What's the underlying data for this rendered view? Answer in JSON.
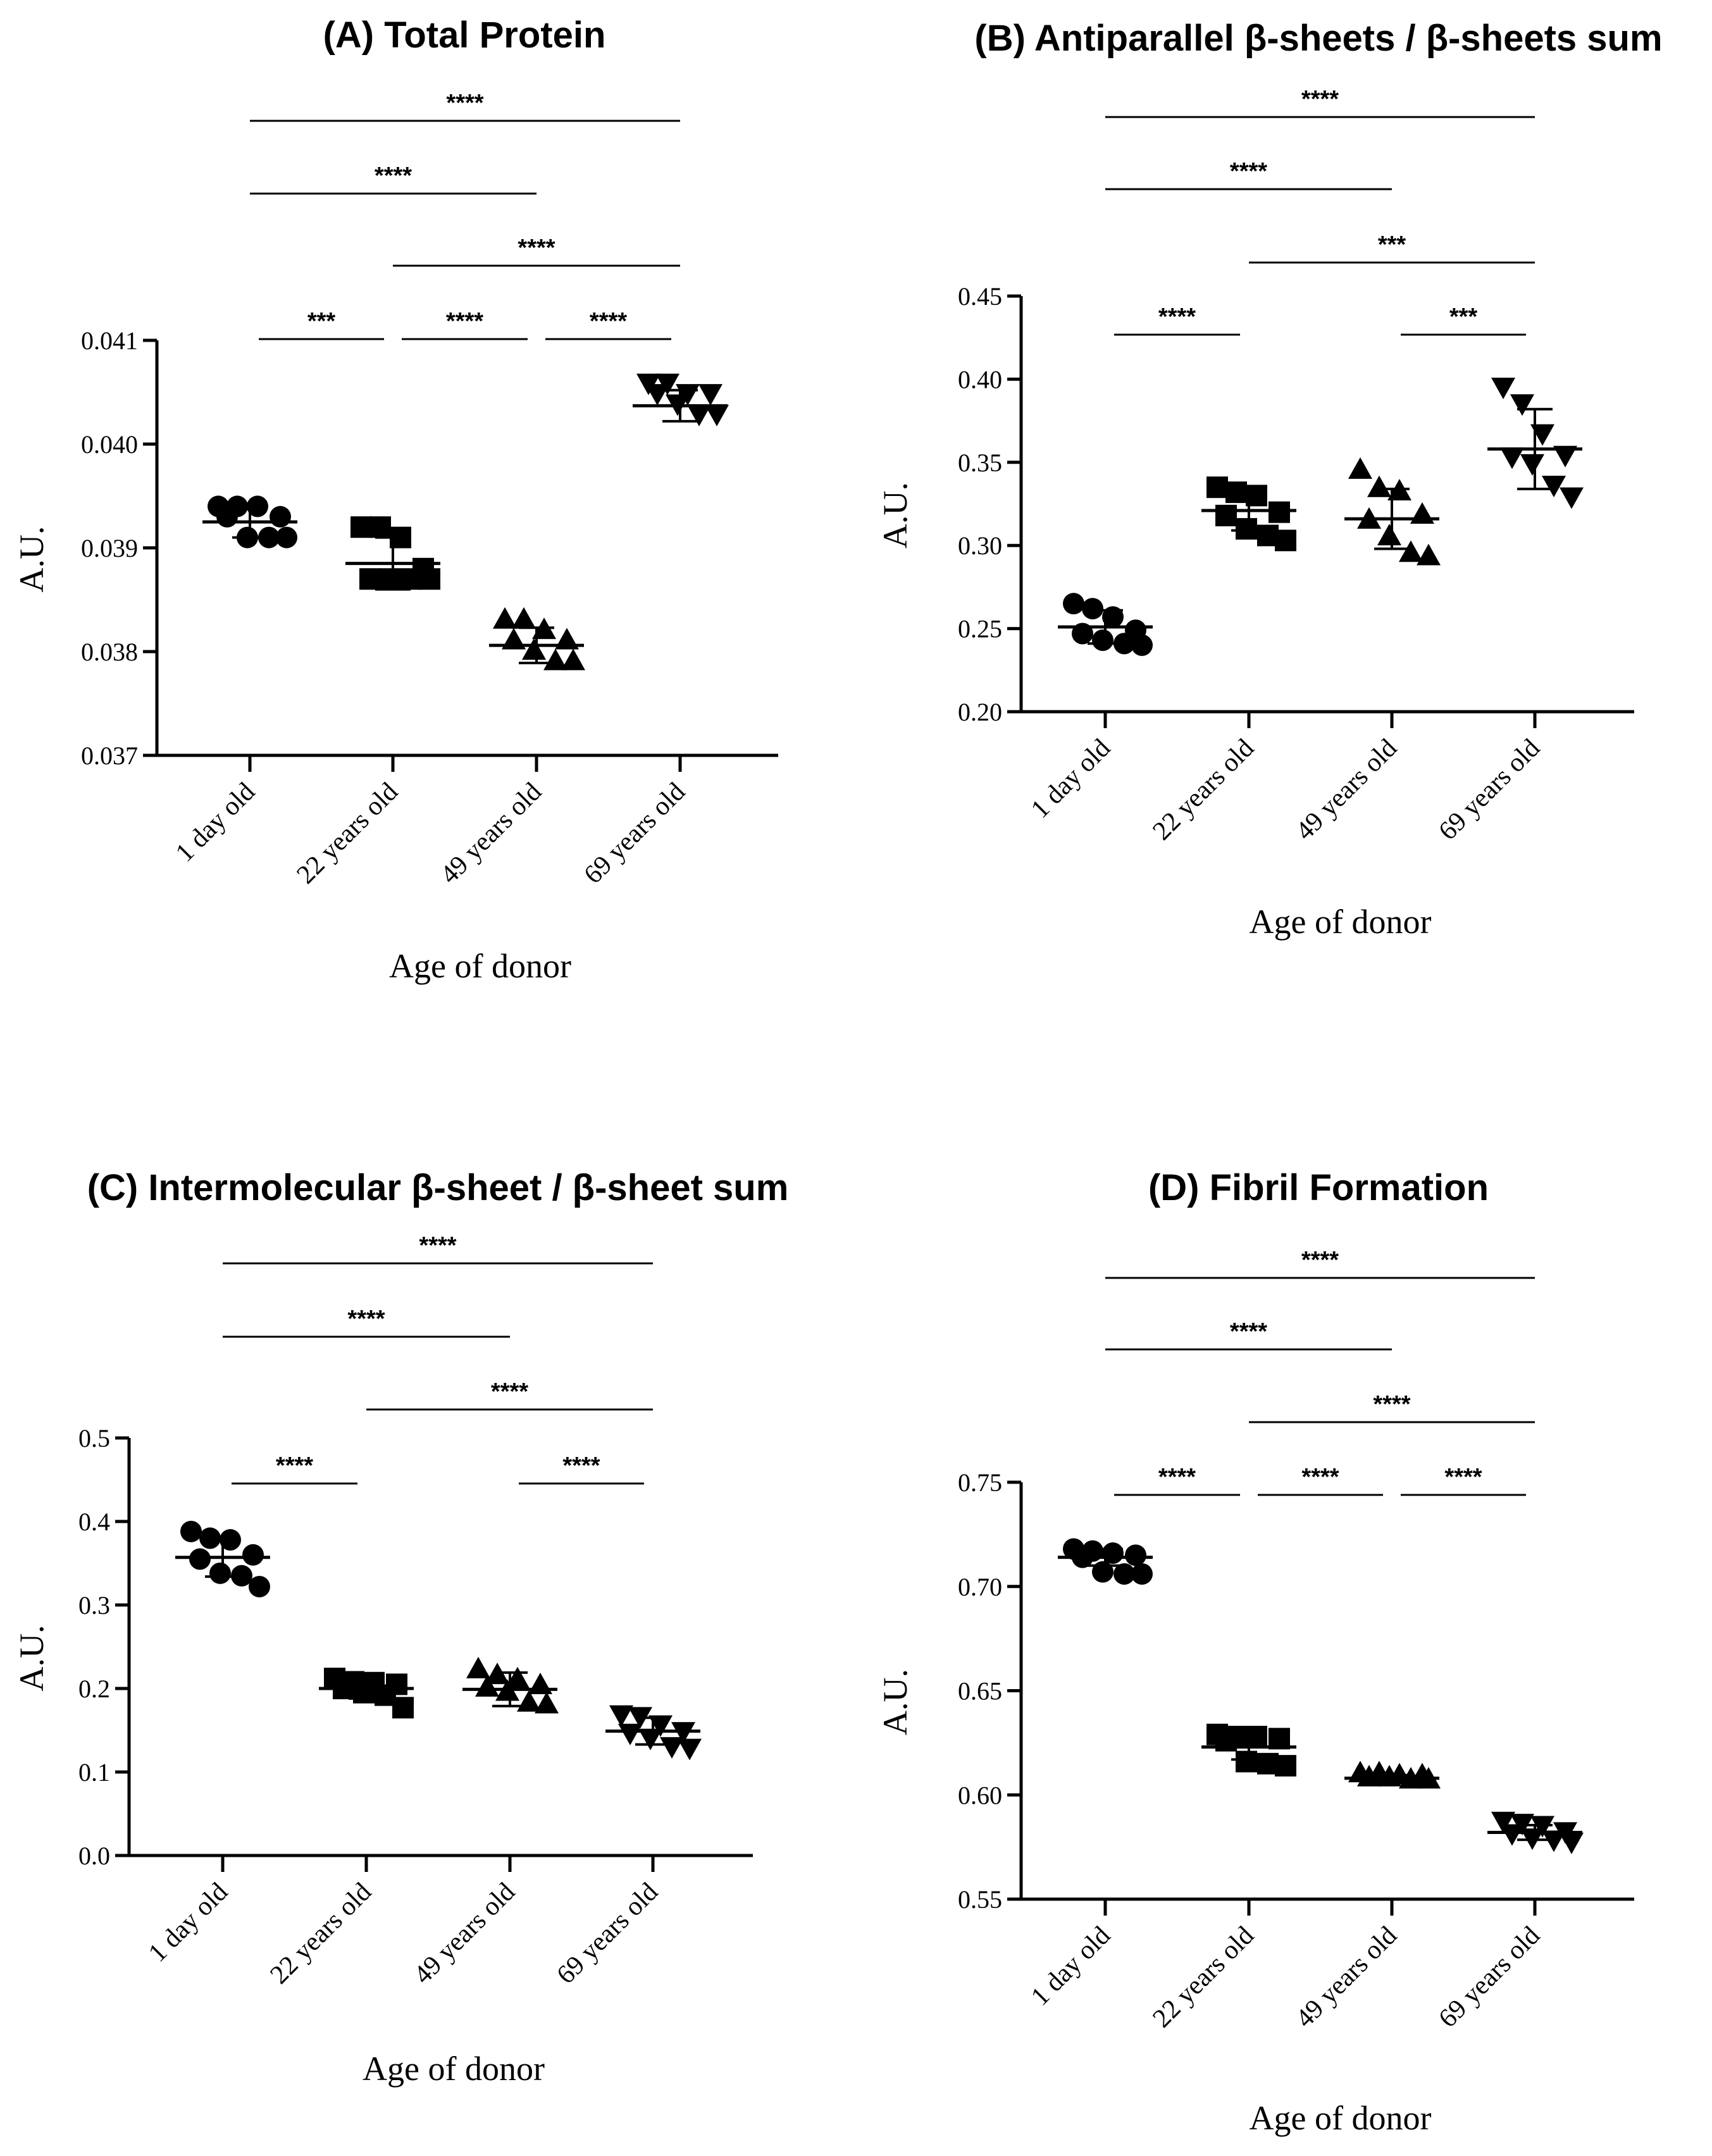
{
  "chart_data": [
    {
      "id": "A",
      "type": "scatter",
      "title": "(A) Total Protein",
      "xlabel": "Age of donor",
      "ylabel": "A.U.",
      "categories": [
        "1 day old",
        "22 years old",
        "49 years old",
        "69 years old"
      ],
      "markers": [
        "circle",
        "square",
        "triangle-up",
        "triangle-down"
      ],
      "ylim": [
        0.037,
        0.041
      ],
      "yticks": [
        0.037,
        0.038,
        0.039,
        0.04,
        0.041
      ],
      "ytick_labels": [
        "0.037",
        "0.038",
        "0.039",
        "0.040",
        "0.041"
      ],
      "series": [
        {
          "name": "1 day old",
          "values": [
            0.0394,
            0.0394,
            0.0394,
            0.0393,
            0.0393,
            0.0391,
            0.0391,
            0.0391
          ],
          "mean": 0.03925,
          "sd": 0.00015
        },
        {
          "name": "22 years old",
          "values": [
            0.0392,
            0.0392,
            0.0391,
            0.0388,
            0.0387,
            0.0387,
            0.0387,
            0.0387
          ],
          "mean": 0.03885,
          "sd": 0.00025
        },
        {
          "name": "49 years old",
          "values": [
            0.0383,
            0.0383,
            0.0382,
            0.0381,
            0.0381,
            0.038,
            0.0379,
            0.0379
          ],
          "mean": 0.03806,
          "sd": 0.00017
        },
        {
          "name": "69 years old",
          "values": [
            0.0406,
            0.0406,
            0.0405,
            0.0405,
            0.0405,
            0.0404,
            0.0403,
            0.0403
          ],
          "mean": 0.04037,
          "sd": 0.00015
        }
      ],
      "comparisons": [
        {
          "from": 0,
          "to": 1,
          "label": "***"
        },
        {
          "from": 1,
          "to": 2,
          "label": "****"
        },
        {
          "from": 2,
          "to": 3,
          "label": "****"
        },
        {
          "from": 0,
          "to": 2,
          "label": "****"
        },
        {
          "from": 1,
          "to": 3,
          "label": "****"
        },
        {
          "from": 0,
          "to": 3,
          "label": "****"
        }
      ]
    },
    {
      "id": "B",
      "type": "scatter",
      "title": "(B) Antiparallel β-sheets / β-sheets sum",
      "xlabel": "Age of donor",
      "ylabel": "A.U.",
      "categories": [
        "1 day old",
        "22 years old",
        "49 years old",
        "69 years old"
      ],
      "markers": [
        "circle",
        "square",
        "triangle-up",
        "triangle-down"
      ],
      "ylim": [
        0.2,
        0.45
      ],
      "yticks": [
        0.2,
        0.25,
        0.3,
        0.35,
        0.4,
        0.45
      ],
      "ytick_labels": [
        "0.20",
        "0.25",
        "0.30",
        "0.35",
        "0.40",
        "0.45"
      ],
      "series": [
        {
          "name": "1 day old",
          "values": [
            0.265,
            0.262,
            0.257,
            0.249,
            0.247,
            0.243,
            0.241,
            0.24
          ],
          "mean": 0.251,
          "sd": 0.01
        },
        {
          "name": "22 years old",
          "values": [
            0.335,
            0.332,
            0.33,
            0.32,
            0.318,
            0.31,
            0.306,
            0.303
          ],
          "mean": 0.321,
          "sd": 0.012
        },
        {
          "name": "49 years old",
          "values": [
            0.345,
            0.334,
            0.332,
            0.318,
            0.315,
            0.305,
            0.295,
            0.293
          ],
          "mean": 0.316,
          "sd": 0.018
        },
        {
          "name": "69 years old",
          "values": [
            0.396,
            0.386,
            0.368,
            0.355,
            0.354,
            0.35,
            0.337,
            0.33
          ],
          "mean": 0.358,
          "sd": 0.024
        }
      ],
      "comparisons": [
        {
          "from": 0,
          "to": 1,
          "label": "****"
        },
        {
          "from": 2,
          "to": 3,
          "label": "***"
        },
        {
          "from": 0,
          "to": 2,
          "label": "****"
        },
        {
          "from": 1,
          "to": 3,
          "label": "***"
        },
        {
          "from": 0,
          "to": 3,
          "label": "****"
        }
      ]
    },
    {
      "id": "C",
      "type": "scatter",
      "title": "(C) Intermolecular β-sheet / β-sheet sum",
      "xlabel": "Age of donor",
      "ylabel": "A.U.",
      "categories": [
        "1 day old",
        "22 years old",
        "49 years old",
        "69 years old"
      ],
      "markers": [
        "circle",
        "square",
        "triangle-up",
        "triangle-down"
      ],
      "ylim": [
        0.0,
        0.5
      ],
      "yticks": [
        0.0,
        0.1,
        0.2,
        0.3,
        0.4,
        0.5
      ],
      "ytick_labels": [
        "0.0",
        "0.1",
        "0.2",
        "0.3",
        "0.4",
        "0.5"
      ],
      "series": [
        {
          "name": "1 day old",
          "values": [
            0.388,
            0.38,
            0.378,
            0.36,
            0.355,
            0.338,
            0.335,
            0.322
          ],
          "mean": 0.357,
          "sd": 0.023
        },
        {
          "name": "22 years old",
          "values": [
            0.212,
            0.208,
            0.207,
            0.205,
            0.2,
            0.195,
            0.192,
            0.177
          ],
          "mean": 0.2,
          "sd": 0.012
        },
        {
          "name": "49 years old",
          "values": [
            0.222,
            0.215,
            0.21,
            0.203,
            0.2,
            0.195,
            0.182,
            0.18
          ],
          "mean": 0.199,
          "sd": 0.02
        },
        {
          "name": "69 years old",
          "values": [
            0.17,
            0.168,
            0.158,
            0.15,
            0.148,
            0.142,
            0.132,
            0.13
          ],
          "mean": 0.149,
          "sd": 0.016
        }
      ],
      "comparisons": [
        {
          "from": 0,
          "to": 1,
          "label": "****"
        },
        {
          "from": 2,
          "to": 3,
          "label": "****"
        },
        {
          "from": 0,
          "to": 2,
          "label": "****"
        },
        {
          "from": 1,
          "to": 3,
          "label": "****"
        },
        {
          "from": 0,
          "to": 3,
          "label": "****"
        }
      ]
    },
    {
      "id": "D",
      "type": "scatter",
      "title": "(D) Fibril Formation",
      "xlabel": "Age of donor",
      "ylabel": "A.U.",
      "categories": [
        "1 day old",
        "22 years old",
        "49 years old",
        "69 years old"
      ],
      "markers": [
        "circle",
        "square",
        "triangle-up",
        "triangle-down"
      ],
      "ylim": [
        0.55,
        0.75
      ],
      "yticks": [
        0.55,
        0.6,
        0.65,
        0.7,
        0.75
      ],
      "ytick_labels": [
        "0.55",
        "0.60",
        "0.65",
        "0.70",
        "0.75"
      ],
      "series": [
        {
          "name": "1 day old",
          "values": [
            0.718,
            0.717,
            0.716,
            0.715,
            0.714,
            0.707,
            0.706,
            0.706
          ],
          "mean": 0.714,
          "sd": 0.004
        },
        {
          "name": "22 years old",
          "values": [
            0.629,
            0.628,
            0.628,
            0.627,
            0.626,
            0.616,
            0.615,
            0.614
          ],
          "mean": 0.623,
          "sd": 0.006
        },
        {
          "name": "49 years old",
          "values": [
            0.61,
            0.61,
            0.609,
            0.609,
            0.608,
            0.608,
            0.607,
            0.607
          ],
          "mean": 0.608,
          "sd": 0.0015
        },
        {
          "name": "69 years old",
          "values": [
            0.588,
            0.587,
            0.586,
            0.583,
            0.582,
            0.58,
            0.579,
            0.578
          ],
          "mean": 0.582,
          "sd": 0.0035
        }
      ],
      "comparisons": [
        {
          "from": 0,
          "to": 1,
          "label": "****"
        },
        {
          "from": 1,
          "to": 2,
          "label": "****"
        },
        {
          "from": 2,
          "to": 3,
          "label": "****"
        },
        {
          "from": 0,
          "to": 2,
          "label": "****"
        },
        {
          "from": 1,
          "to": 3,
          "label": "****"
        },
        {
          "from": 0,
          "to": 3,
          "label": "****"
        }
      ]
    }
  ]
}
